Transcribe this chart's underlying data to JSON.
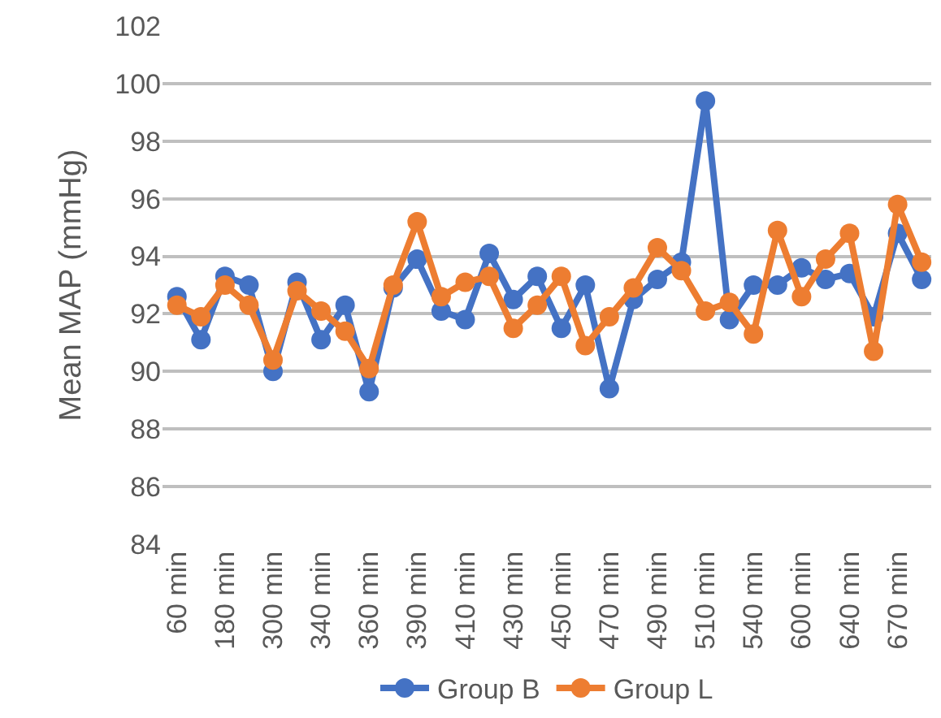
{
  "chart_data": {
    "type": "line",
    "ylabel": "Mean MAP (mmHg)",
    "categories": [
      "60 min",
      null,
      "180 min",
      null,
      "300 min",
      null,
      "340 min",
      null,
      "360 min",
      null,
      "390 min",
      null,
      "410 min",
      null,
      "430 min",
      null,
      "450 min",
      null,
      "470 min",
      null,
      "490 min",
      null,
      "510 min",
      null,
      "540 min",
      null,
      "600 min",
      null,
      "640 min",
      null,
      "670 min",
      null
    ],
    "series": [
      {
        "name": "Group B",
        "color": "#4472c4",
        "values": [
          92.6,
          91.1,
          93.3,
          93.0,
          90.0,
          93.1,
          91.1,
          92.3,
          89.3,
          92.9,
          93.9,
          92.1,
          91.8,
          94.1,
          92.5,
          93.3,
          91.5,
          93.0,
          89.4,
          92.5,
          93.2,
          93.8,
          99.4,
          91.8,
          93.0,
          93.0,
          93.6,
          93.2,
          93.4,
          91.9,
          94.8,
          93.2
        ]
      },
      {
        "name": "Group L",
        "color": "#ed7d31",
        "values": [
          92.3,
          91.9,
          93.0,
          92.3,
          90.4,
          92.8,
          92.1,
          91.4,
          90.1,
          93.0,
          95.2,
          92.6,
          93.1,
          93.3,
          91.5,
          92.3,
          93.3,
          90.9,
          91.9,
          92.9,
          94.3,
          93.5,
          92.1,
          92.4,
          91.3,
          94.9,
          92.6,
          93.9,
          94.8,
          90.7,
          95.8,
          93.8
        ]
      }
    ],
    "ylim": [
      84,
      102
    ],
    "yticks": [
      84,
      86,
      88,
      90,
      92,
      94,
      96,
      98,
      100,
      102
    ],
    "grid": "y",
    "legend": "bottom",
    "marker": "circle",
    "line_style": "solid"
  }
}
